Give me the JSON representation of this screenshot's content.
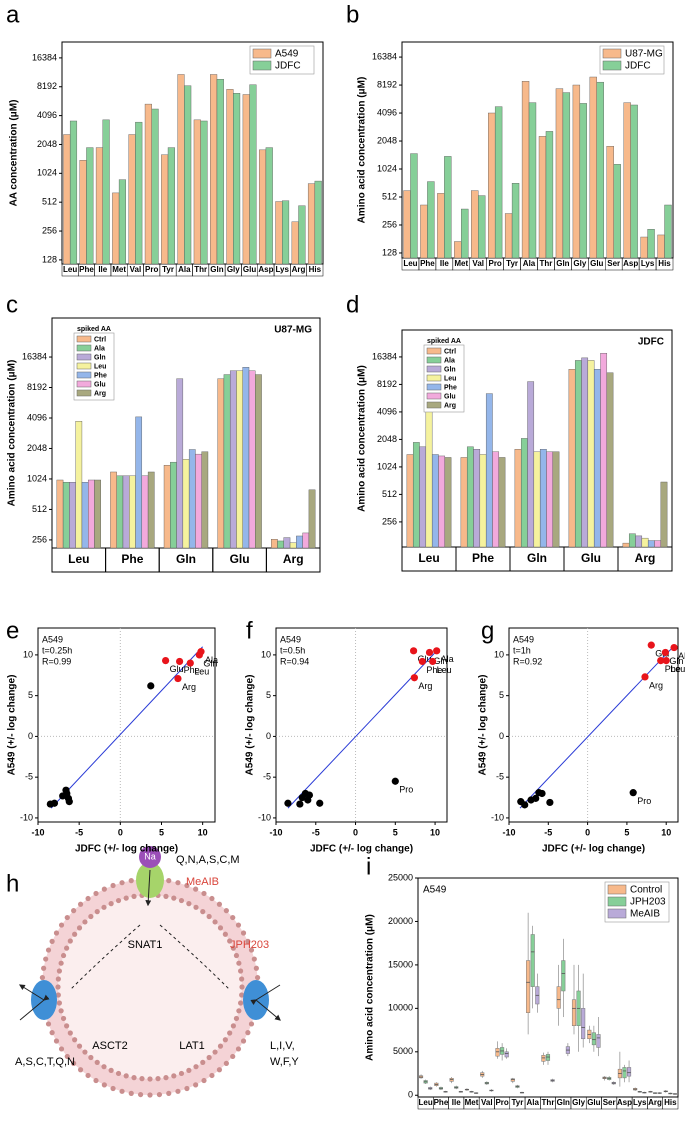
{
  "chart_data": [
    {
      "panel": "a",
      "type": "bar",
      "yscale": "log",
      "log_base": 2,
      "ylabel": "AA concentration (μM)",
      "legend": "top-right",
      "categories": [
        "Leu",
        "Phe",
        "Ile",
        "Met",
        "Val",
        "Pro",
        "Tyr",
        "Ala",
        "Thr",
        "Gln",
        "Gly",
        "Glu",
        "Asp",
        "Lys",
        "Arg",
        "His"
      ],
      "series": [
        {
          "name": "A549",
          "color": "#f7b98b",
          "values": [
            2600,
            1400,
            1900,
            640,
            2600,
            5400,
            1600,
            11000,
            3700,
            11000,
            7700,
            6800,
            1800,
            520,
            320,
            800
          ]
        },
        {
          "name": "JDFC",
          "color": "#86cf98",
          "values": [
            3600,
            1900,
            3700,
            880,
            3500,
            4800,
            1900,
            8400,
            3600,
            9800,
            7000,
            8600,
            1900,
            530,
            470,
            850
          ]
        }
      ],
      "ylim": [
        116,
        24000
      ],
      "yticks": [
        128,
        256,
        512,
        1024,
        2048,
        4096,
        8192,
        16384
      ]
    },
    {
      "panel": "b",
      "type": "bar",
      "yscale": "log",
      "log_base": 2,
      "ylabel": "Amino acid concentration (μM)",
      "legend": "top-right",
      "categories": [
        "Leu",
        "Phe",
        "Ile",
        "Met",
        "Val",
        "Pro",
        "Tyr",
        "Ala",
        "Thr",
        "Gln",
        "Gly",
        "Glu",
        "Ser",
        "Asp",
        "Lys",
        "His"
      ],
      "series": [
        {
          "name": "U87-MG",
          "color": "#f7b98b",
          "values": [
            600,
            420,
            560,
            170,
            600,
            4100,
            340,
            9000,
            2300,
            7500,
            8200,
            10000,
            1800,
            5300,
            190,
            200
          ]
        },
        {
          "name": "JDFC",
          "color": "#86cf98",
          "values": [
            1500,
            750,
            1400,
            380,
            530,
            4800,
            720,
            5300,
            2600,
            6800,
            5200,
            8800,
            1150,
            5000,
            230,
            420
          ]
        }
      ],
      "ylim": [
        113,
        23800
      ],
      "yticks": [
        128,
        256,
        512,
        1024,
        2048,
        4096,
        8192,
        16384
      ]
    },
    {
      "panel": "c",
      "type": "bar",
      "yscale": "log",
      "log_base": 2,
      "ylabel": "Amino acid concentration (μM)",
      "label": "U87-MG",
      "legend": "top-left",
      "legend_title": "spiked AA",
      "categories": [
        "Leu",
        "Phe",
        "Gln",
        "Glu",
        "Arg"
      ],
      "series": [
        {
          "name": "Ctrl",
          "color": "#f7b98b",
          "values": [
            1000,
            1200,
            1400,
            10000,
            260
          ]
        },
        {
          "name": "Ala",
          "color": "#86cf98",
          "values": [
            950,
            1100,
            1500,
            11000,
            250
          ]
        },
        {
          "name": "Gln",
          "color": "#b9aad8",
          "values": [
            950,
            1100,
            10000,
            12000,
            270
          ]
        },
        {
          "name": "Leu",
          "color": "#f5f29e",
          "values": [
            3800,
            1100,
            1600,
            12000,
            240
          ]
        },
        {
          "name": "Phe",
          "color": "#94b6ea",
          "values": [
            950,
            4200,
            2000,
            13000,
            280
          ]
        },
        {
          "name": "Glu",
          "color": "#f2a9dc",
          "values": [
            1000,
            1100,
            1800,
            12000,
            300
          ]
        },
        {
          "name": "Arg",
          "color": "#a8a87f",
          "values": [
            1000,
            1200,
            1900,
            11000,
            800
          ]
        }
      ],
      "ylim": [
        213,
        39800
      ],
      "yticks": [
        256,
        512,
        1024,
        2048,
        4096,
        8192,
        16384
      ]
    },
    {
      "panel": "d",
      "type": "bar",
      "yscale": "log",
      "log_base": 2,
      "ylabel": "Amino acid concentration (μM)",
      "label": "JDFC",
      "legend": "top-left",
      "legend_title": "spiked AA",
      "categories": [
        "Leu",
        "Phe",
        "Gln",
        "Glu",
        "Arg"
      ],
      "series": [
        {
          "name": "Ctrl",
          "color": "#f7b98b",
          "values": [
            1400,
            1300,
            1600,
            12000,
            150
          ]
        },
        {
          "name": "Ala",
          "color": "#86cf98",
          "values": [
            1900,
            1700,
            2100,
            15000,
            190
          ]
        },
        {
          "name": "Gln",
          "color": "#b9aad8",
          "values": [
            1700,
            1600,
            8800,
            16000,
            180
          ]
        },
        {
          "name": "Leu",
          "color": "#f5f29e",
          "values": [
            7800,
            1400,
            1500,
            15000,
            170
          ]
        },
        {
          "name": "Phe",
          "color": "#94b6ea",
          "values": [
            1400,
            6500,
            1600,
            12000,
            160
          ]
        },
        {
          "name": "Glu",
          "color": "#f2a9dc",
          "values": [
            1350,
            1500,
            1500,
            18000,
            160
          ]
        },
        {
          "name": "Arg",
          "color": "#a8a87f",
          "values": [
            1300,
            1300,
            1500,
            11000,
            700
          ]
        }
      ],
      "ylim": [
        136,
        32300
      ],
      "yticks": [
        256,
        512,
        1024,
        2048,
        4096,
        8192,
        16384
      ]
    },
    {
      "panel": "e",
      "type": "scatter",
      "xlabel": "JDFC (+/- log change)",
      "ylabel": "A549 (+/- log change)",
      "annotation": [
        "A549",
        "t=0.25h",
        "R=0.99"
      ],
      "xlim": [
        -10,
        11.5
      ],
      "ylim": [
        -10.5,
        13.3
      ],
      "xticks": [
        -10,
        -5,
        0,
        5,
        10
      ],
      "yticks": [
        -10,
        -5,
        0,
        5,
        10
      ],
      "fit": {
        "color": "#2a3bd6",
        "x": [
          -8.4,
          10
        ],
        "y": [
          -8.8,
          11
        ]
      },
      "series": [
        {
          "color": "#000000",
          "x": [
            -8.5,
            -8,
            -7,
            -6.6,
            -6.3,
            -6.2,
            -6.5,
            3.7
          ],
          "y": [
            -8.3,
            -8.2,
            -7.3,
            -6.6,
            -7.6,
            -8,
            -7,
            6.2
          ]
        },
        {
          "color": "#e8141b",
          "x": [
            5.5,
            7.2,
            9.8,
            9.6,
            8.5,
            7
          ],
          "y": [
            9.3,
            9.2,
            10.4,
            10,
            9,
            7.1
          ],
          "labels": [
            "Glu",
            "Phe",
            "Ala",
            "Gln",
            "Leu",
            "Arg"
          ]
        }
      ]
    },
    {
      "panel": "f",
      "type": "scatter",
      "xlabel": "JDFC (+/- log change)",
      "ylabel": "A549 (+/- log change)",
      "annotation": [
        "A549",
        "t=0.5h",
        "R=0.94"
      ],
      "xlim": [
        -10,
        11.5
      ],
      "ylim": [
        -10.5,
        13.3
      ],
      "xticks": [
        -10,
        -5,
        0,
        5,
        10
      ],
      "yticks": [
        -10,
        -5,
        0,
        5,
        10
      ],
      "fit": {
        "color": "#2a3bd6",
        "x": [
          -8.5,
          10.5
        ],
        "y": [
          -8.8,
          10.8
        ]
      },
      "series": [
        {
          "color": "#000000",
          "x": [
            -8.5,
            -7,
            -6.7,
            -6.3,
            -5.8,
            -4.5,
            -6,
            5
          ],
          "y": [
            -8.2,
            -8.3,
            -7.5,
            -7,
            -7.2,
            -8.2,
            -7.8,
            -5.5
          ],
          "labels": [
            null,
            null,
            null,
            null,
            null,
            null,
            null,
            "Pro"
          ]
        },
        {
          "color": "#e8141b",
          "x": [
            7.3,
            9.3,
            10.2,
            8.4,
            9.7,
            7.4
          ],
          "y": [
            10.5,
            10.3,
            10.5,
            9.2,
            9.2,
            7.2
          ],
          "labels": [
            "Glu",
            "Gln",
            "Ala",
            "Phe",
            "Leu",
            "Arg"
          ]
        }
      ]
    },
    {
      "panel": "g",
      "type": "scatter",
      "xlabel": "JDFC (+/- log change)",
      "ylabel": "A549 (+/- log change)",
      "annotation": [
        "A549",
        "t=1h",
        "R=0.92"
      ],
      "xlim": [
        -10,
        11.5
      ],
      "ylim": [
        -10.5,
        13.3
      ],
      "xticks": [
        -10,
        -5,
        0,
        5,
        10
      ],
      "yticks": [
        -10,
        -5,
        0,
        5,
        10
      ],
      "fit": {
        "color": "#2a3bd6",
        "x": [
          -8.6,
          10.8
        ],
        "y": [
          -8.8,
          10.9
        ]
      },
      "series": [
        {
          "color": "#000000",
          "x": [
            -8.5,
            -8,
            -7.2,
            -6.6,
            -6.2,
            -5.8,
            -4.8,
            5.8
          ],
          "y": [
            -8,
            -8.4,
            -7.8,
            -7.6,
            -6.9,
            -7,
            -8.1,
            -6.9
          ],
          "labels": [
            null,
            null,
            null,
            null,
            null,
            null,
            null,
            "Pro"
          ]
        },
        {
          "color": "#e8141b",
          "x": [
            8.1,
            9.9,
            11,
            9.3,
            10,
            7.3
          ],
          "y": [
            11.2,
            10.3,
            10.9,
            9.3,
            9.3,
            7.3
          ],
          "labels": [
            "Glu",
            "Gln",
            "Ala",
            "Phe",
            "Leu",
            "Arg"
          ]
        }
      ]
    },
    {
      "panel": "i",
      "type": "box",
      "ylabel": "Amino acid concentration (μM)",
      "label": "A549",
      "legend": "top-right",
      "categories": [
        "Leu",
        "Phe",
        "Ile",
        "Met",
        "Val",
        "Pro",
        "Tyr",
        "Ala",
        "Thr",
        "Gln",
        "Gly",
        "Glu",
        "Ser",
        "Asp",
        "Lys",
        "Arg",
        "His"
      ],
      "ylim": [
        -200,
        25000
      ],
      "yticks": [
        0,
        5000,
        10000,
        15000,
        20000,
        25000
      ],
      "series": [
        {
          "name": "Control",
          "color": "#f7b98b",
          "values": [
            [
              1900,
              2000,
              2100,
              2250,
              2400
            ],
            [
              1000,
              1100,
              1250,
              1400,
              1500
            ],
            [
              1400,
              1600,
              1800,
              1950,
              2100
            ],
            [
              500,
              600,
              650,
              700,
              800
            ],
            [
              2000,
              2200,
              2400,
              2600,
              2800
            ],
            [
              4200,
              4500,
              5000,
              5400,
              6200
            ],
            [
              1400,
              1600,
              1800,
              1900,
              2000
            ],
            [
              7000,
              9500,
              13000,
              15500,
              21000
            ],
            [
              3500,
              3900,
              4300,
              4600,
              4900
            ],
            [
              8000,
              10000,
              11000,
              12500,
              15000
            ],
            [
              7000,
              8000,
              10000,
              11000,
              15000
            ],
            [
              6000,
              6500,
              7000,
              7500,
              8000
            ],
            [
              1700,
              1900,
              2000,
              2100,
              2200
            ],
            [
              1000,
              2000,
              2500,
              3000,
              5000
            ],
            [
              500,
              600,
              700,
              800,
              900
            ],
            [
              300,
              350,
              400,
              450,
              500
            ],
            [
              300,
              400,
              450,
              500,
              600
            ]
          ]
        },
        {
          "name": "JPH203",
          "color": "#86cf98",
          "values": [
            [
              1300,
              1400,
              1550,
              1700,
              1800
            ],
            [
              600,
              700,
              800,
              900,
              1000
            ],
            [
              700,
              800,
              900,
              1000,
              1100
            ],
            [
              300,
              350,
              400,
              450,
              500
            ],
            [
              1200,
              1300,
              1400,
              1500,
              1600
            ],
            [
              4000,
              4700,
              5100,
              5500,
              6000
            ],
            [
              800,
              900,
              1000,
              1100,
              1200
            ],
            [
              10000,
              12500,
              16500,
              18500,
              19500
            ],
            [
              3500,
              4000,
              4400,
              4700,
              5000
            ],
            [
              9000,
              12000,
              14000,
              15500,
              18000
            ],
            [
              5000,
              8000,
              10000,
              12000,
              15000
            ],
            [
              5000,
              5800,
              6400,
              7200,
              8000
            ],
            [
              1700,
              1800,
              1950,
              2050,
              2200
            ],
            [
              1500,
              2000,
              2800,
              3200,
              3500
            ],
            [
              300,
              350,
              400,
              450,
              500
            ],
            [
              150,
              200,
              250,
              300,
              350
            ],
            [
              100,
              150,
              200,
              250,
              300
            ]
          ]
        },
        {
          "name": "MeAIB",
          "color": "#b9aad8",
          "values": [
            [
              600,
              700,
              800,
              900,
              1000
            ],
            [
              300,
              350,
              400,
              450,
              500
            ],
            [
              300,
              350,
              400,
              450,
              500
            ],
            [
              150,
              200,
              250,
              300,
              350
            ],
            [
              400,
              500,
              550,
              600,
              700
            ],
            [
              4200,
              4400,
              4800,
              5000,
              5400
            ],
            [
              200,
              250,
              300,
              350,
              400
            ],
            [
              9500,
              10500,
              11500,
              12500,
              14000
            ],
            [
              1500,
              1600,
              1700,
              1800,
              1900
            ],
            [
              4500,
              4800,
              5200,
              5600,
              6000
            ],
            [
              5500,
              6500,
              7800,
              10000,
              14000
            ],
            [
              4500,
              5500,
              6600,
              7000,
              9000
            ],
            [
              1200,
              1300,
              1400,
              1500,
              1600
            ],
            [
              1500,
              2200,
              2600,
              3200,
              4000
            ],
            [
              200,
              250,
              300,
              350,
              400
            ],
            [
              150,
              200,
              250,
              300,
              350
            ],
            [
              50,
              100,
              150,
              200,
              250
            ]
          ]
        }
      ]
    }
  ],
  "diagram": {
    "panel": "h",
    "na": "Na",
    "snat_substrates": "Q,N,A,S,C,M",
    "meaib": "MeAIB",
    "snat1": "SNAT1",
    "jph203": "JPH203",
    "asct_substrates": "A,S,C,T,Q,N",
    "asct2": "ASCT2",
    "lat1": "LAT1",
    "lat_substrates_1": "L,I,V,",
    "lat_substrates_2": "W,F,Y"
  }
}
